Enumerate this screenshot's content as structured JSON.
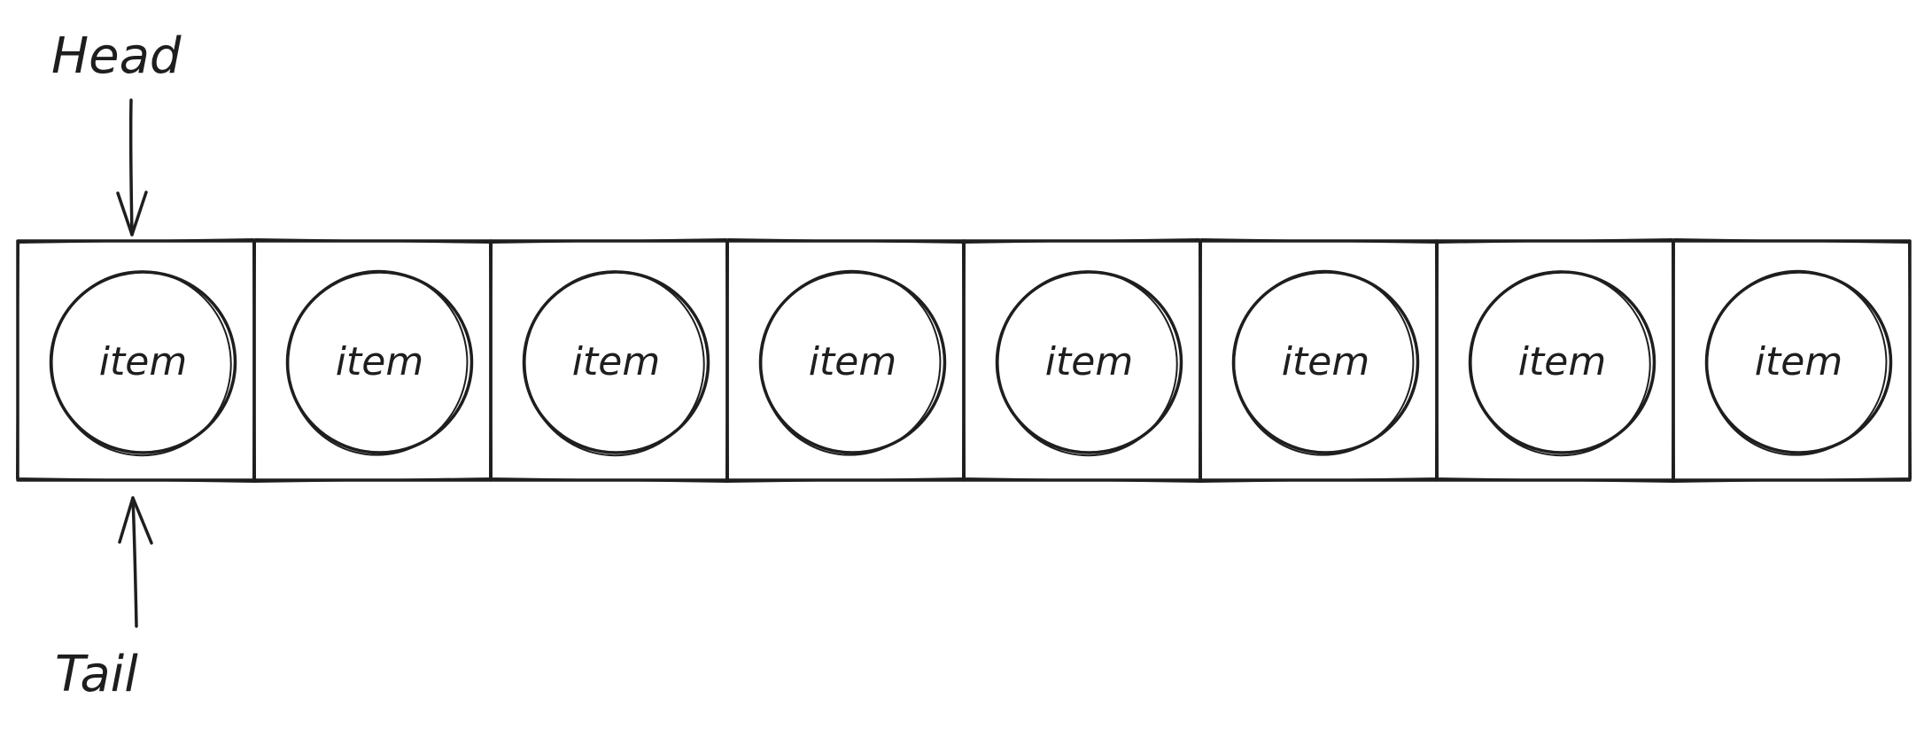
{
  "pointers": {
    "head": {
      "label": "Head",
      "target_index": 0
    },
    "tail": {
      "label": "Tail",
      "target_index": 0
    }
  },
  "queue": {
    "slots": [
      {
        "label": "item"
      },
      {
        "label": "item"
      },
      {
        "label": "item"
      },
      {
        "label": "item"
      },
      {
        "label": "item"
      },
      {
        "label": "item"
      },
      {
        "label": "item"
      },
      {
        "label": "item"
      }
    ]
  },
  "colors": {
    "stroke": "#1e1e1e",
    "background": "#ffffff"
  }
}
